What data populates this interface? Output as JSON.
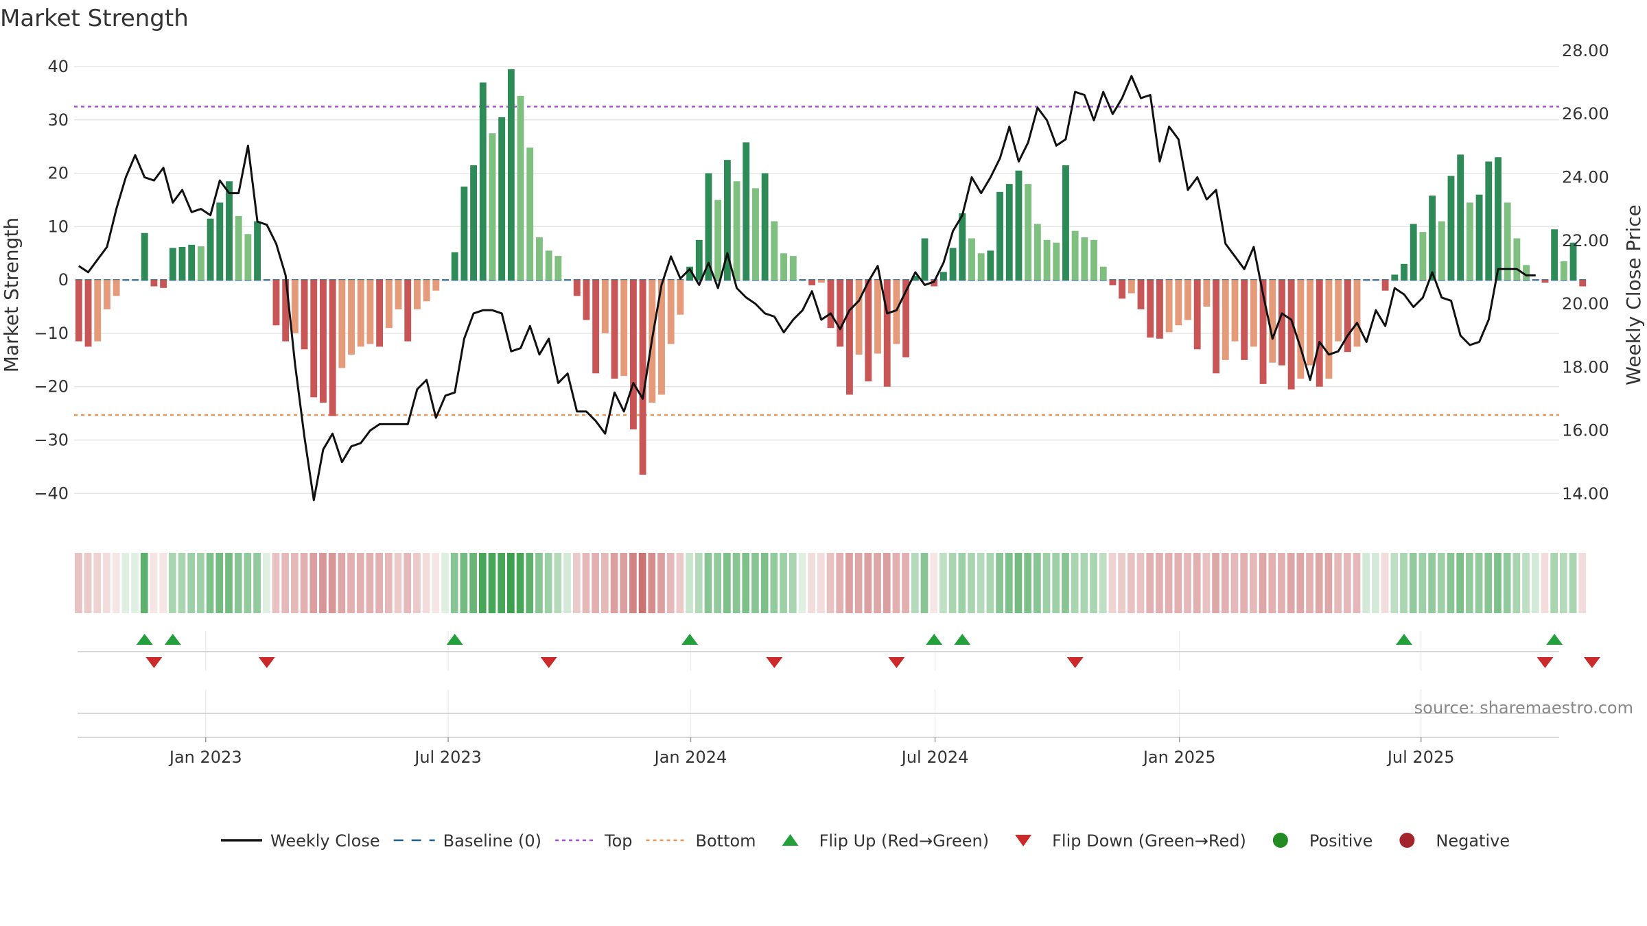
{
  "chart_data": {
    "type": "bar",
    "title": "Market Strength",
    "ylabel": "Market Strength",
    "y2label": "Weekly Close Price",
    "source": "source: sharemaestro.com",
    "ylim": [
      -46,
      40
    ],
    "y2lim": [
      13.0,
      27.5
    ],
    "yticks": [
      40,
      30,
      20,
      10,
      0,
      -10,
      -20,
      -30,
      -40
    ],
    "yticklabels": [
      "40",
      "30",
      "20",
      "10",
      "0",
      "−10",
      "−20",
      "−30",
      "−40"
    ],
    "y2ticks": [
      28,
      26,
      24,
      22,
      20,
      18,
      16,
      14
    ],
    "y2ticklabels": [
      "28.00",
      "26.00",
      "24.00",
      "22.00",
      "20.00",
      "18.00",
      "16.00",
      "14.00"
    ],
    "xlim": [
      0,
      158
    ],
    "xticks": [
      {
        "label": "Jan 2023",
        "x": 14
      },
      {
        "label": "Jul 2023",
        "x": 39.8
      },
      {
        "label": "Jan 2024",
        "x": 65.6
      },
      {
        "label": "Jul 2024",
        "x": 91.6
      },
      {
        "label": "Jan 2025",
        "x": 117.6
      },
      {
        "label": "Jul 2025",
        "x": 143.3
      }
    ],
    "top_line": 32.5,
    "bottom_line": -25.3,
    "baseline": 0,
    "colors": {
      "pos_strong": "#2e8b57",
      "pos_light": "#7fbf7f",
      "neg_strong": "#c85656",
      "neg_light": "#e59a7a",
      "close": "#111111",
      "top": "#a64fcf",
      "bottom": "#e8965a",
      "baseline": "#1f5f8b",
      "flip_up": "#23a03c",
      "flip_down": "#cc2a2a",
      "positive": "#228b22",
      "negative": "#a3242b"
    },
    "series": [
      {
        "name": "Market Strength",
        "values": [
          -11.5,
          -12.5,
          -11.5,
          -5.5,
          -3,
          0,
          0,
          8.8,
          -1.2,
          -1.5,
          6,
          6.2,
          6.6,
          6.3,
          11.5,
          14.5,
          18.5,
          12,
          8.6,
          11,
          0,
          -8.5,
          -11.5,
          -10,
          -13,
          -22,
          -23,
          -25.5,
          -16.5,
          -14,
          -12.5,
          -12,
          -12.5,
          -9,
          -5.5,
          -11.5,
          -5.5,
          -4,
          -2,
          0,
          5.2,
          17.5,
          21.5,
          37,
          27.5,
          30.5,
          39.5,
          34.5,
          24.8,
          8,
          5.5,
          4.5,
          0,
          -3,
          -7.5,
          -17.5,
          -10,
          -18.5,
          -18,
          -28,
          -36.5,
          -23,
          -21.5,
          -12,
          -6.5,
          2.5,
          7.5,
          20,
          15,
          22.5,
          18.5,
          25.8,
          17.2,
          20,
          11,
          5,
          4.5,
          0,
          -1,
          -0.5,
          -9,
          -12.5,
          -21.5,
          -14,
          -19,
          -13.8,
          -20,
          -12,
          -14.5,
          0.8,
          7.8,
          -1.2,
          1.5,
          6,
          12.5,
          7.8,
          5,
          5.5,
          16.5,
          18,
          20.5,
          18,
          10.5,
          7.5,
          7,
          21.5,
          9.2,
          8,
          7.5,
          2.5,
          -1,
          -3.5,
          -2.5,
          -5.5,
          -10.8,
          -11,
          -9.8,
          -8.5,
          -7.5,
          -13,
          -5,
          -17.5,
          -15,
          -11.5,
          -15,
          -12.5,
          -19.5,
          -15.5,
          -16,
          -20.5,
          -18.5,
          -16,
          -20,
          -18.5,
          -11.5,
          -13.5,
          -12.5,
          0,
          0,
          -2,
          1,
          3,
          10.5,
          9,
          15.8,
          11,
          19.5,
          23.5,
          14.5,
          16,
          22.2,
          23,
          14.5,
          7.8,
          2.8,
          0,
          -0.5,
          9.5,
          3.5,
          7,
          -1.2
        ]
      },
      {
        "name": "Weekly Close",
        "values": [
          21.2,
          21.0,
          21.4,
          21.8,
          23.0,
          24.0,
          24.7,
          24.0,
          23.9,
          24.3,
          23.2,
          23.6,
          22.9,
          23.0,
          22.8,
          23.9,
          23.5,
          23.5,
          25.0,
          22.6,
          22.5,
          21.9,
          20.9,
          18.1,
          15.8,
          13.8,
          15.4,
          15.9,
          15.0,
          15.5,
          15.6,
          16.0,
          16.2,
          16.2,
          16.2,
          16.2,
          17.3,
          17.6,
          16.4,
          17.1,
          17.2,
          18.9,
          19.7,
          19.8,
          19.8,
          19.7,
          18.5,
          18.6,
          19.3,
          18.4,
          18.9,
          17.5,
          17.8,
          16.6,
          16.6,
          16.3,
          15.9,
          17.2,
          16.6,
          17.5,
          17.0,
          18.9,
          20.6,
          21.5,
          20.8,
          21.1,
          20.6,
          21.3,
          20.5,
          21.6,
          20.5,
          20.2,
          20.0,
          19.7,
          19.6,
          19.1,
          19.5,
          19.8,
          20.4,
          19.5,
          19.7,
          19.2,
          19.8,
          20.1,
          20.7,
          21.2,
          19.7,
          19.8,
          20.4,
          21.0,
          20.6,
          20.7,
          21.3,
          22.3,
          22.8,
          24.0,
          23.5,
          24.0,
          24.6,
          25.6,
          24.5,
          25.1,
          26.2,
          25.8,
          25.0,
          25.2,
          26.7,
          26.6,
          25.8,
          26.7,
          26.0,
          26.5,
          27.2,
          26.5,
          26.6,
          24.5,
          25.6,
          25.2,
          23.6,
          24.0,
          23.3,
          23.6,
          21.9,
          21.5,
          21.1,
          21.8,
          20.3,
          18.9,
          19.7,
          19.5,
          18.6,
          17.6,
          18.8,
          18.4,
          18.5,
          19.0,
          19.4,
          18.8,
          19.8,
          19.3,
          20.5,
          20.3,
          19.9,
          20.2,
          21.0,
          20.2,
          20.1,
          19.0,
          18.7,
          18.8,
          19.5,
          21.1,
          21.1,
          21.1,
          20.9,
          20.9
        ]
      }
    ],
    "strength_band_intensity": [
      0.35,
      0.3,
      0.25,
      0.2,
      0.15,
      0.1,
      0.1,
      0.75,
      0.1,
      0.15,
      0.4,
      0.4,
      0.45,
      0.45,
      0.6,
      0.65,
      0.65,
      0.55,
      0.5,
      0.5,
      0.15,
      0.35,
      0.4,
      0.4,
      0.45,
      0.55,
      0.6,
      0.6,
      0.5,
      0.45,
      0.45,
      0.45,
      0.45,
      0.4,
      0.3,
      0.4,
      0.3,
      0.2,
      0.15,
      0.1,
      0.55,
      0.65,
      0.7,
      0.85,
      0.85,
      0.85,
      0.9,
      0.85,
      0.75,
      0.55,
      0.45,
      0.35,
      0.2,
      0.3,
      0.4,
      0.45,
      0.4,
      0.55,
      0.55,
      0.7,
      0.8,
      0.65,
      0.55,
      0.4,
      0.3,
      0.25,
      0.35,
      0.55,
      0.5,
      0.6,
      0.55,
      0.6,
      0.55,
      0.6,
      0.5,
      0.45,
      0.4,
      0.15,
      0.2,
      0.2,
      0.35,
      0.45,
      0.55,
      0.5,
      0.55,
      0.5,
      0.55,
      0.45,
      0.45,
      0.35,
      0.55,
      0.15,
      0.3,
      0.4,
      0.45,
      0.4,
      0.35,
      0.4,
      0.55,
      0.6,
      0.65,
      0.6,
      0.55,
      0.45,
      0.45,
      0.55,
      0.4,
      0.4,
      0.4,
      0.3,
      0.25,
      0.3,
      0.35,
      0.35,
      0.45,
      0.45,
      0.45,
      0.45,
      0.4,
      0.45,
      0.35,
      0.5,
      0.45,
      0.4,
      0.45,
      0.4,
      0.5,
      0.45,
      0.45,
      0.5,
      0.5,
      0.45,
      0.5,
      0.5,
      0.4,
      0.4,
      0.4,
      0.2,
      0.2,
      0.2,
      0.3,
      0.4,
      0.5,
      0.45,
      0.5,
      0.45,
      0.55,
      0.6,
      0.5,
      0.5,
      0.55,
      0.6,
      0.5,
      0.4,
      0.3,
      0.2,
      0.2,
      0.4,
      0.35,
      0.4,
      0.2
    ],
    "flip_up_x": [
      7.0,
      10.0,
      40.0,
      65.0,
      91.0,
      94.0,
      141.0,
      157.0
    ],
    "flip_down_x": [
      8.0,
      20.0,
      50.0,
      74.0,
      87.0,
      106.0,
      156.0,
      161.0
    ],
    "legend": [
      {
        "label": "Weekly Close",
        "key": "close"
      },
      {
        "label": "Baseline (0)",
        "key": "baseline"
      },
      {
        "label": "Top",
        "key": "top"
      },
      {
        "label": "Bottom",
        "key": "bottom"
      },
      {
        "label": "Flip Up (Red→Green)",
        "key": "flip_up"
      },
      {
        "label": "Flip Down (Green→Red)",
        "key": "flip_down"
      },
      {
        "label": "Positive",
        "key": "positive"
      },
      {
        "label": "Negative",
        "key": "negative"
      }
    ]
  }
}
